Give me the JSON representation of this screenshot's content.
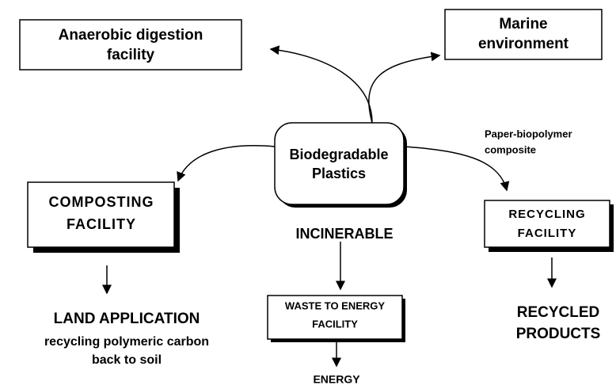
{
  "nodes": [
    {
      "id": "center",
      "lines": [
        "Biodegradable",
        "Plastics"
      ]
    },
    {
      "id": "anaerobic",
      "lines": [
        "Anaerobic digestion",
        "facility"
      ]
    },
    {
      "id": "marine",
      "lines": [
        "Marine",
        "environment"
      ]
    },
    {
      "id": "composting",
      "lines": [
        "COMPOSTING",
        "FACILITY"
      ]
    },
    {
      "id": "recycling",
      "lines": [
        "RECYCLING",
        "FACILITY"
      ]
    },
    {
      "id": "waste",
      "lines": [
        "WASTE TO ENERGY",
        "FACILITY"
      ]
    },
    {
      "id": "land",
      "lines": [
        "LAND APPLICATION",
        "recycling polymeric carbon",
        "back to soil"
      ]
    },
    {
      "id": "energy",
      "lines": [
        "ENERGY"
      ]
    },
    {
      "id": "products",
      "lines": [
        "RECYCLED",
        "PRODUCTS"
      ]
    }
  ],
  "labels": {
    "incinerable": "INCINERABLE",
    "composite": [
      "Paper-biopolymer",
      "composite"
    ]
  }
}
